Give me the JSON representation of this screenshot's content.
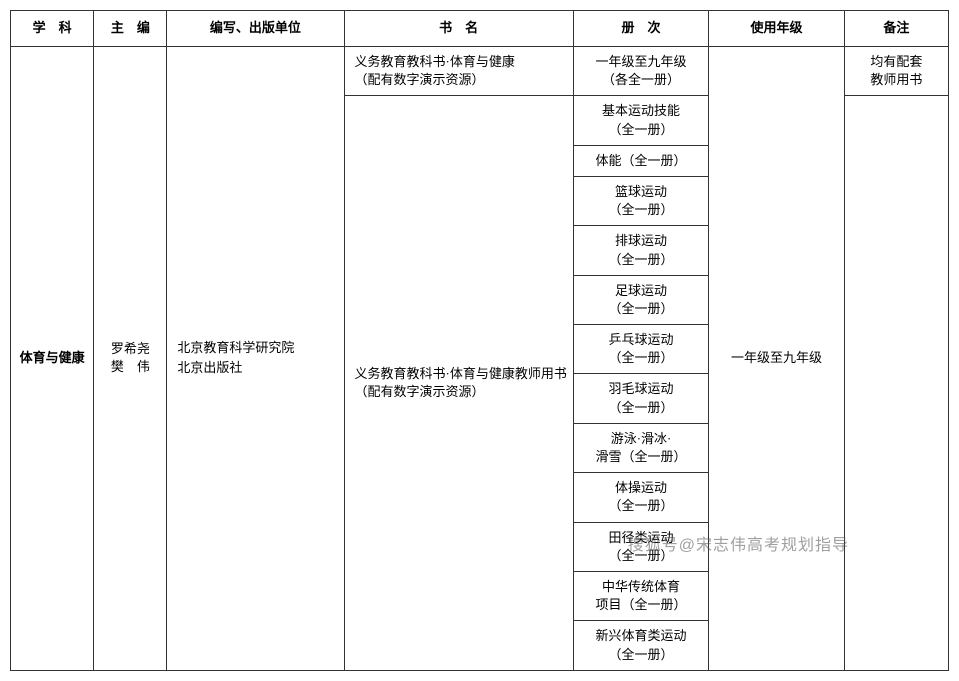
{
  "header": {
    "subject": "学　科",
    "editor": "主　编",
    "publisher": "编写、出版单位",
    "title": "书　名",
    "volume": "册　次",
    "grade": "使用年级",
    "remark": "备注"
  },
  "subject": "体育与健康",
  "editor_line1": "罗希尧",
  "editor_line2": "樊　伟",
  "publisher_line1": "北京教育科学研究院",
  "publisher_line2": "北京出版社",
  "book1_title_l1": "义务教育教科书·体育与健康",
  "book1_title_l2": "（配有数字演示资源）",
  "book1_vol_l1": "一年级至九年级",
  "book1_vol_l2": "（各全一册）",
  "grade": "一年级至九年级",
  "remark_l1": "均有配套",
  "remark_l2": "教师用书",
  "book2_title_l1": "义务教育教科书·体育与健康教师用书",
  "book2_title_l2": "（配有数字演示资源）",
  "vols": [
    {
      "l1": "基本运动技能",
      "l2": "（全一册）"
    },
    {
      "l1": "体能（全一册）",
      "l2": ""
    },
    {
      "l1": "篮球运动",
      "l2": "（全一册）"
    },
    {
      "l1": "排球运动",
      "l2": "（全一册）"
    },
    {
      "l1": "足球运动",
      "l2": "（全一册）"
    },
    {
      "l1": "乒乓球运动",
      "l2": "（全一册）"
    },
    {
      "l1": "羽毛球运动",
      "l2": "（全一册）"
    },
    {
      "l1": "游泳·滑冰·",
      "l2": "滑雪（全一册）"
    },
    {
      "l1": "体操运动",
      "l2": "（全一册）"
    },
    {
      "l1": "田径类运动",
      "l2": "（全一册）"
    },
    {
      "l1": "中华传统体育",
      "l2": "项目（全一册）"
    },
    {
      "l1": "新兴体育类运动",
      "l2": "（全一册）"
    }
  ],
  "watermark": "搜狐号@宋志伟高考规划指导"
}
